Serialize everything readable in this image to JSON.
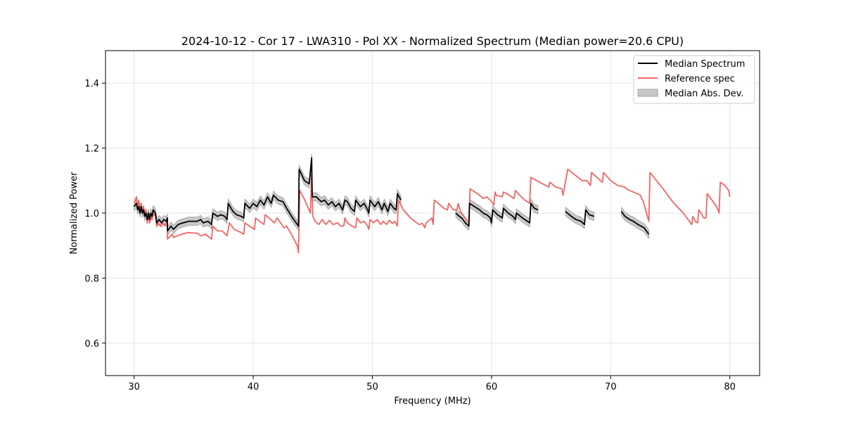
{
  "chart_data": {
    "type": "line",
    "title": "2024-10-12 - Cor 17 - LWA310 - Pol XX - Normalized Spectrum (Median power=20.6 CPU)",
    "xlabel": "Frequency (MHz)",
    "ylabel": "Normalized Power",
    "xlim": [
      27.6,
      82.5
    ],
    "ylim": [
      0.5,
      1.5
    ],
    "xticks": [
      30,
      40,
      50,
      60,
      70,
      80
    ],
    "yticks": [
      0.6,
      0.8,
      1.0,
      1.2,
      1.4
    ],
    "grid": true,
    "legend_position": "top-right",
    "legend": [
      "Median Spectrum",
      "Reference spec",
      "Median Abs. Dev."
    ],
    "colors": {
      "median": "#000000",
      "reference": "#f26464",
      "mad_fill": "#c8c8c8",
      "mad_edge": "#a0a0a0",
      "grid": "#e6e6e6"
    },
    "reference_spec": {
      "name": "Reference spec",
      "points": [
        [
          30.0,
          1.03
        ],
        [
          30.2,
          1.05
        ],
        [
          30.3,
          1.02
        ],
        [
          30.4,
          1.04
        ],
        [
          30.5,
          1.01
        ],
        [
          30.6,
          1.03
        ],
        [
          30.7,
          1.0
        ],
        [
          30.8,
          1.02
        ],
        [
          30.9,
          0.99
        ],
        [
          31.0,
          1.01
        ],
        [
          31.1,
          0.97
        ],
        [
          31.2,
          0.99
        ],
        [
          31.3,
          0.97
        ],
        [
          31.4,
          0.99
        ],
        [
          31.5,
          0.98
        ],
        [
          31.6,
          1.0
        ],
        [
          31.8,
          0.99
        ],
        [
          31.9,
          0.96
        ],
        [
          32.0,
          0.97
        ],
        [
          32.2,
          0.96
        ],
        [
          32.4,
          0.97
        ],
        [
          32.6,
          0.96
        ],
        [
          32.8,
          0.98
        ],
        [
          32.8,
          0.92
        ],
        [
          33.2,
          0.935
        ],
        [
          33.3,
          0.925
        ],
        [
          34.0,
          0.935
        ],
        [
          34.5,
          0.94
        ],
        [
          35.3,
          0.938
        ],
        [
          35.6,
          0.93
        ],
        [
          36.0,
          0.935
        ],
        [
          36.5,
          0.92
        ],
        [
          36.6,
          0.96
        ],
        [
          37.0,
          0.945
        ],
        [
          37.4,
          0.945
        ],
        [
          37.8,
          0.93
        ],
        [
          38.0,
          0.97
        ],
        [
          38.4,
          0.95
        ],
        [
          38.7,
          0.945
        ],
        [
          39.0,
          0.94
        ],
        [
          39.2,
          0.935
        ],
        [
          39.3,
          0.97
        ],
        [
          40.1,
          0.95
        ],
        [
          40.2,
          0.985
        ],
        [
          40.9,
          0.965
        ],
        [
          41.0,
          0.995
        ],
        [
          41.8,
          0.97
        ],
        [
          42.0,
          0.985
        ],
        [
          42.3,
          0.97
        ],
        [
          42.6,
          0.955
        ],
        [
          42.8,
          0.96
        ],
        [
          43.2,
          0.935
        ],
        [
          43.7,
          0.9
        ],
        [
          43.8,
          0.878
        ],
        [
          43.9,
          1.07
        ],
        [
          44.2,
          1.05
        ],
        [
          44.8,
          1.0
        ],
        [
          44.9,
          1.12
        ],
        [
          45.0,
          0.99
        ],
        [
          45.2,
          0.975
        ],
        [
          45.5,
          0.965
        ],
        [
          45.8,
          0.98
        ],
        [
          46.1,
          0.965
        ],
        [
          46.4,
          0.978
        ],
        [
          46.7,
          0.965
        ],
        [
          47.1,
          0.97
        ],
        [
          47.3,
          0.96
        ],
        [
          47.6,
          0.96
        ],
        [
          47.7,
          0.985
        ],
        [
          47.9,
          0.97
        ],
        [
          48.3,
          0.96
        ],
        [
          48.6,
          0.955
        ],
        [
          48.7,
          0.985
        ],
        [
          49.0,
          0.97
        ],
        [
          49.3,
          0.975
        ],
        [
          49.6,
          0.96
        ],
        [
          49.7,
          0.95
        ],
        [
          49.8,
          0.98
        ],
        [
          50.1,
          0.97
        ],
        [
          50.4,
          0.98
        ],
        [
          50.7,
          0.965
        ],
        [
          50.9,
          0.975
        ],
        [
          51.2,
          0.965
        ],
        [
          51.4,
          0.978
        ],
        [
          51.7,
          0.968
        ],
        [
          51.9,
          0.975
        ],
        [
          52.1,
          0.96
        ],
        [
          52.2,
          1.04
        ],
        [
          52.6,
          1.01
        ],
        [
          53.2,
          0.985
        ],
        [
          53.9,
          0.965
        ],
        [
          54.2,
          0.968
        ],
        [
          54.4,
          0.955
        ],
        [
          54.5,
          0.97
        ],
        [
          55.0,
          0.985
        ],
        [
          55.1,
          0.965
        ],
        [
          55.2,
          1.04
        ],
        [
          56.0,
          1.015
        ],
        [
          56.3,
          1.01
        ],
        [
          56.4,
          1.03
        ],
        [
          56.8,
          1.01
        ],
        [
          57.1,
          1.01
        ],
        [
          57.2,
          1.03
        ],
        [
          57.4,
          1.005
        ],
        [
          58.0,
          0.975
        ],
        [
          58.1,
          0.97
        ],
        [
          58.2,
          1.075
        ],
        [
          59.0,
          1.055
        ],
        [
          59.3,
          1.045
        ],
        [
          59.6,
          1.05
        ],
        [
          59.9,
          1.04
        ],
        [
          60.2,
          1.025
        ],
        [
          60.3,
          1.065
        ],
        [
          60.4,
          1.055
        ],
        [
          60.9,
          1.05
        ],
        [
          61.0,
          1.065
        ],
        [
          61.5,
          1.055
        ],
        [
          61.9,
          1.045
        ],
        [
          62.0,
          1.07
        ],
        [
          62.5,
          1.05
        ],
        [
          62.8,
          1.04
        ],
        [
          63.0,
          1.035
        ],
        [
          63.2,
          1.03
        ],
        [
          63.3,
          1.11
        ],
        [
          64.3,
          1.09
        ],
        [
          64.8,
          1.08
        ],
        [
          64.9,
          1.095
        ],
        [
          65.4,
          1.08
        ],
        [
          65.9,
          1.075
        ],
        [
          66.0,
          1.055
        ],
        [
          66.4,
          1.135
        ],
        [
          67.6,
          1.1
        ],
        [
          68.0,
          1.1
        ],
        [
          68.3,
          1.085
        ],
        [
          68.4,
          1.125
        ],
        [
          69.3,
          1.095
        ],
        [
          69.4,
          1.125
        ],
        [
          70.0,
          1.1
        ],
        [
          70.6,
          1.085
        ],
        [
          71.2,
          1.08
        ],
        [
          71.3,
          1.075
        ],
        [
          72.5,
          1.055
        ],
        [
          72.6,
          1.045
        ],
        [
          72.7,
          1.04
        ],
        [
          73.2,
          0.975
        ],
        [
          73.3,
          1.125
        ],
        [
          74.4,
          1.075
        ],
        [
          75.2,
          1.035
        ],
        [
          76.1,
          1.0
        ],
        [
          76.8,
          0.965
        ],
        [
          76.9,
          0.99
        ],
        [
          77.1,
          0.975
        ],
        [
          77.3,
          0.97
        ],
        [
          77.4,
          1.01
        ],
        [
          77.6,
          1.0
        ],
        [
          77.8,
          0.985
        ],
        [
          78.0,
          0.985
        ],
        [
          78.1,
          1.06
        ],
        [
          78.9,
          1.02
        ],
        [
          79.1,
          1.0
        ],
        [
          79.2,
          1.095
        ],
        [
          79.6,
          1.085
        ],
        [
          79.9,
          1.07
        ],
        [
          80.0,
          1.05
        ]
      ]
    },
    "median_spectrum": {
      "name": "Median Spectrum",
      "segments": [
        [
          [
            30.0,
            1.02
          ],
          [
            30.2,
            1.03
          ],
          [
            30.3,
            1.01
          ],
          [
            30.4,
            1.02
          ],
          [
            30.5,
            1.0
          ],
          [
            30.6,
            1.02
          ],
          [
            30.7,
            1.0
          ],
          [
            30.8,
            1.01
          ],
          [
            30.9,
            0.99
          ],
          [
            31.0,
            1.0
          ],
          [
            31.1,
            0.98
          ],
          [
            31.2,
            1.0
          ],
          [
            31.3,
            0.98
          ],
          [
            31.4,
            1.0
          ],
          [
            31.5,
            0.99
          ],
          [
            31.6,
            1.01
          ],
          [
            31.8,
            1.0
          ],
          [
            31.9,
            0.97
          ],
          [
            32.1,
            0.98
          ],
          [
            32.3,
            0.97
          ],
          [
            32.5,
            0.98
          ],
          [
            32.7,
            0.975
          ],
          [
            32.8,
            0.985
          ],
          [
            32.8,
            0.945
          ],
          [
            33.1,
            0.96
          ],
          [
            33.3,
            0.95
          ],
          [
            33.7,
            0.965
          ],
          [
            34.1,
            0.97
          ],
          [
            34.6,
            0.975
          ],
          [
            35.3,
            0.975
          ],
          [
            35.6,
            0.98
          ],
          [
            35.8,
            0.97
          ],
          [
            36.2,
            0.975
          ],
          [
            36.5,
            0.965
          ],
          [
            36.6,
            1.0
          ],
          [
            37.0,
            0.99
          ],
          [
            37.3,
            0.995
          ],
          [
            37.6,
            0.99
          ],
          [
            37.8,
            0.98
          ],
          [
            37.9,
            1.03
          ],
          [
            38.3,
            1.005
          ],
          [
            38.6,
            0.995
          ],
          [
            39.0,
            0.99
          ],
          [
            39.2,
            0.985
          ],
          [
            39.3,
            1.03
          ],
          [
            39.7,
            1.015
          ],
          [
            40.0,
            1.03
          ],
          [
            40.3,
            1.02
          ],
          [
            40.6,
            1.04
          ],
          [
            40.9,
            1.025
          ],
          [
            41.2,
            1.05
          ],
          [
            41.5,
            1.03
          ],
          [
            41.7,
            1.055
          ],
          [
            42.1,
            1.04
          ],
          [
            42.5,
            1.035
          ],
          [
            42.8,
            1.015
          ],
          [
            43.3,
            0.985
          ],
          [
            43.8,
            0.96
          ],
          [
            43.85,
            1.135
          ],
          [
            44.3,
            1.1
          ],
          [
            44.7,
            1.09
          ],
          [
            44.9,
            1.17
          ],
          [
            44.95,
            1.05
          ],
          [
            45.3,
            1.05
          ],
          [
            45.7,
            1.035
          ],
          [
            46.0,
            1.04
          ],
          [
            46.3,
            1.025
          ],
          [
            46.6,
            1.035
          ],
          [
            46.9,
            1.02
          ],
          [
            47.2,
            1.03
          ],
          [
            47.5,
            1.01
          ],
          [
            47.7,
            1.04
          ],
          [
            47.9,
            1.035
          ],
          [
            48.2,
            1.015
          ],
          [
            48.5,
            1.005
          ],
          [
            48.6,
            1.04
          ],
          [
            49.0,
            1.02
          ],
          [
            49.3,
            1.03
          ],
          [
            49.6,
            1.01
          ],
          [
            49.7,
            1.0
          ],
          [
            49.8,
            1.04
          ],
          [
            50.2,
            1.02
          ],
          [
            50.5,
            1.035
          ],
          [
            50.8,
            1.01
          ],
          [
            51.0,
            1.03
          ],
          [
            51.3,
            1.005
          ],
          [
            51.5,
            1.03
          ],
          [
            51.8,
            1.015
          ],
          [
            52.0,
            1.01
          ],
          [
            52.1,
            1.06
          ],
          [
            52.4,
            1.04
          ]
        ],
        [
          [
            57.0,
            1.0
          ],
          [
            57.3,
            0.99
          ],
          [
            57.5,
            0.985
          ],
          [
            57.8,
            0.97
          ],
          [
            58.1,
            0.96
          ],
          [
            58.15,
            1.03
          ],
          [
            59.0,
            1.01
          ],
          [
            59.3,
            1.0
          ],
          [
            59.6,
            0.995
          ],
          [
            59.9,
            0.985
          ],
          [
            60.0,
            0.97
          ],
          [
            60.1,
            1.01
          ],
          [
            60.5,
            0.995
          ],
          [
            60.9,
            0.985
          ],
          [
            61.0,
            1.015
          ],
          [
            61.4,
            1.0
          ],
          [
            61.8,
            0.99
          ],
          [
            62.0,
            0.98
          ],
          [
            62.1,
            1.0
          ],
          [
            62.6,
            0.985
          ],
          [
            63.2,
            0.97
          ],
          [
            63.3,
            1.03
          ],
          [
            63.6,
            1.015
          ],
          [
            63.9,
            1.01
          ]
        ],
        [
          [
            66.2,
            1.005
          ],
          [
            66.7,
            0.99
          ],
          [
            67.1,
            0.98
          ],
          [
            67.5,
            0.975
          ],
          [
            67.8,
            0.965
          ],
          [
            67.9,
            1.01
          ],
          [
            68.2,
            0.995
          ],
          [
            68.6,
            0.99
          ]
        ],
        [
          [
            70.9,
            1.005
          ],
          [
            71.2,
            0.99
          ],
          [
            71.6,
            0.98
          ],
          [
            71.9,
            0.975
          ],
          [
            72.3,
            0.965
          ],
          [
            72.8,
            0.955
          ],
          [
            73.2,
            0.935
          ]
        ]
      ]
    },
    "mad_band": {
      "name": "Median Abs. Dev.",
      "half_width": 0.013
    }
  }
}
